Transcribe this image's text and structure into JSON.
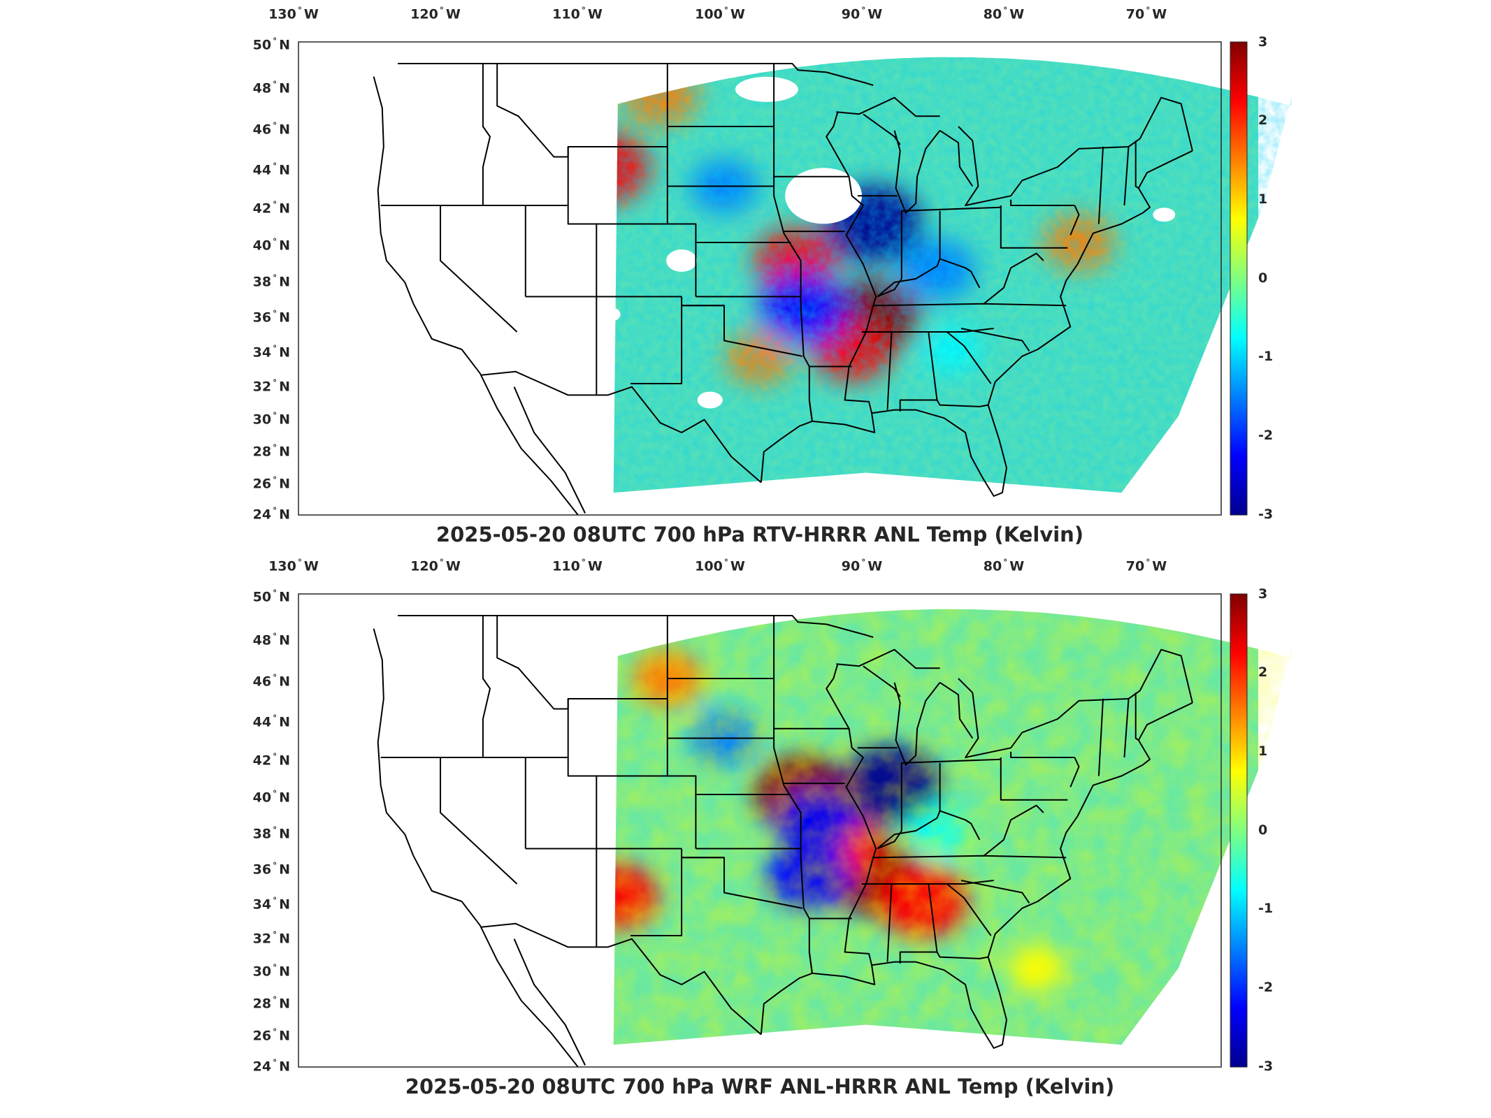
{
  "colors": {
    "colormap": [
      "#00008f",
      "#0000ff",
      "#0080ff",
      "#00ffff",
      "#80ff80",
      "#ffff00",
      "#ff8000",
      "#ff0000",
      "#800000"
    ],
    "no_data": "#ffffff",
    "boundary": "#000000"
  },
  "map": {
    "lon_ticks": [
      {
        "value": "130",
        "hemisphere": "W"
      },
      {
        "value": "120",
        "hemisphere": "W"
      },
      {
        "value": "110",
        "hemisphere": "W"
      },
      {
        "value": "100",
        "hemisphere": "W"
      },
      {
        "value": "90",
        "hemisphere": "W"
      },
      {
        "value": "80",
        "hemisphere": "W"
      },
      {
        "value": "70",
        "hemisphere": "W"
      }
    ],
    "lat_ticks": [
      {
        "value": "50",
        "hemisphere": "N"
      },
      {
        "value": "48",
        "hemisphere": "N"
      },
      {
        "value": "46",
        "hemisphere": "N"
      },
      {
        "value": "44",
        "hemisphere": "N"
      },
      {
        "value": "42",
        "hemisphere": "N"
      },
      {
        "value": "40",
        "hemisphere": "N"
      },
      {
        "value": "38",
        "hemisphere": "N"
      },
      {
        "value": "36",
        "hemisphere": "N"
      },
      {
        "value": "34",
        "hemisphere": "N"
      },
      {
        "value": "32",
        "hemisphere": "N"
      },
      {
        "value": "30",
        "hemisphere": "N"
      },
      {
        "value": "28",
        "hemisphere": "N"
      },
      {
        "value": "26",
        "hemisphere": "N"
      },
      {
        "value": "24",
        "hemisphere": "N"
      }
    ],
    "colorbar": {
      "min": -3,
      "max": 3,
      "tick_labels": [
        "3",
        "2",
        "1",
        "0",
        "-1",
        "-2",
        "-3"
      ]
    }
  },
  "panels": [
    {
      "title": "2025-05-20 08UTC 700 hPa RTV-HRRR ANL Temp (Kelvin)",
      "anomalies": [
        {
          "lon": -108.5,
          "lat": 44.0,
          "value": 2.6
        },
        {
          "lon": -104.5,
          "lat": 47.5,
          "value": 1.8
        },
        {
          "lon": -95.0,
          "lat": 39.0,
          "value": 2.0
        },
        {
          "lon": -89.5,
          "lat": 35.8,
          "value": 2.8
        },
        {
          "lon": -91.0,
          "lat": 34.0,
          "value": 2.0
        },
        {
          "lon": -89.5,
          "lat": 41.0,
          "value": -2.9
        },
        {
          "lon": -94.5,
          "lat": 36.3,
          "value": -2.3
        },
        {
          "lon": -85.0,
          "lat": 38.5,
          "value": -1.8
        },
        {
          "lon": -100.0,
          "lat": 43.0,
          "value": -1.3
        },
        {
          "lon": -75.0,
          "lat": 40.0,
          "value": 1.5
        },
        {
          "lon": -84.0,
          "lat": 34.0,
          "value": -0.8
        },
        {
          "lon": -97.5,
          "lat": 33.5,
          "value": 1.3
        }
      ]
    },
    {
      "title": "2025-05-20 08UTC 700 hPa WRF ANL-HRRR ANL Temp (Kelvin)",
      "anomalies": [
        {
          "lon": -88.3,
          "lat": 40.5,
          "value": -3.0
        },
        {
          "lon": -94.5,
          "lat": 40.0,
          "value": 2.8
        },
        {
          "lon": -89.5,
          "lat": 35.5,
          "value": 2.9
        },
        {
          "lon": -86.0,
          "lat": 34.0,
          "value": 2.5
        },
        {
          "lon": -92.0,
          "lat": 37.0,
          "value": 2.2
        },
        {
          "lon": -93.5,
          "lat": 38.5,
          "value": -2.0
        },
        {
          "lon": -94.0,
          "lat": 35.5,
          "value": -2.2
        },
        {
          "lon": -104.0,
          "lat": 46.0,
          "value": 1.5
        },
        {
          "lon": -107.5,
          "lat": 34.3,
          "value": 2.0
        },
        {
          "lon": -100.0,
          "lat": 43.0,
          "value": -1.3
        },
        {
          "lon": -78.0,
          "lat": 30.0,
          "value": 0.8
        },
        {
          "lon": -85.0,
          "lat": 38.0,
          "value": -1.0
        }
      ]
    }
  ]
}
